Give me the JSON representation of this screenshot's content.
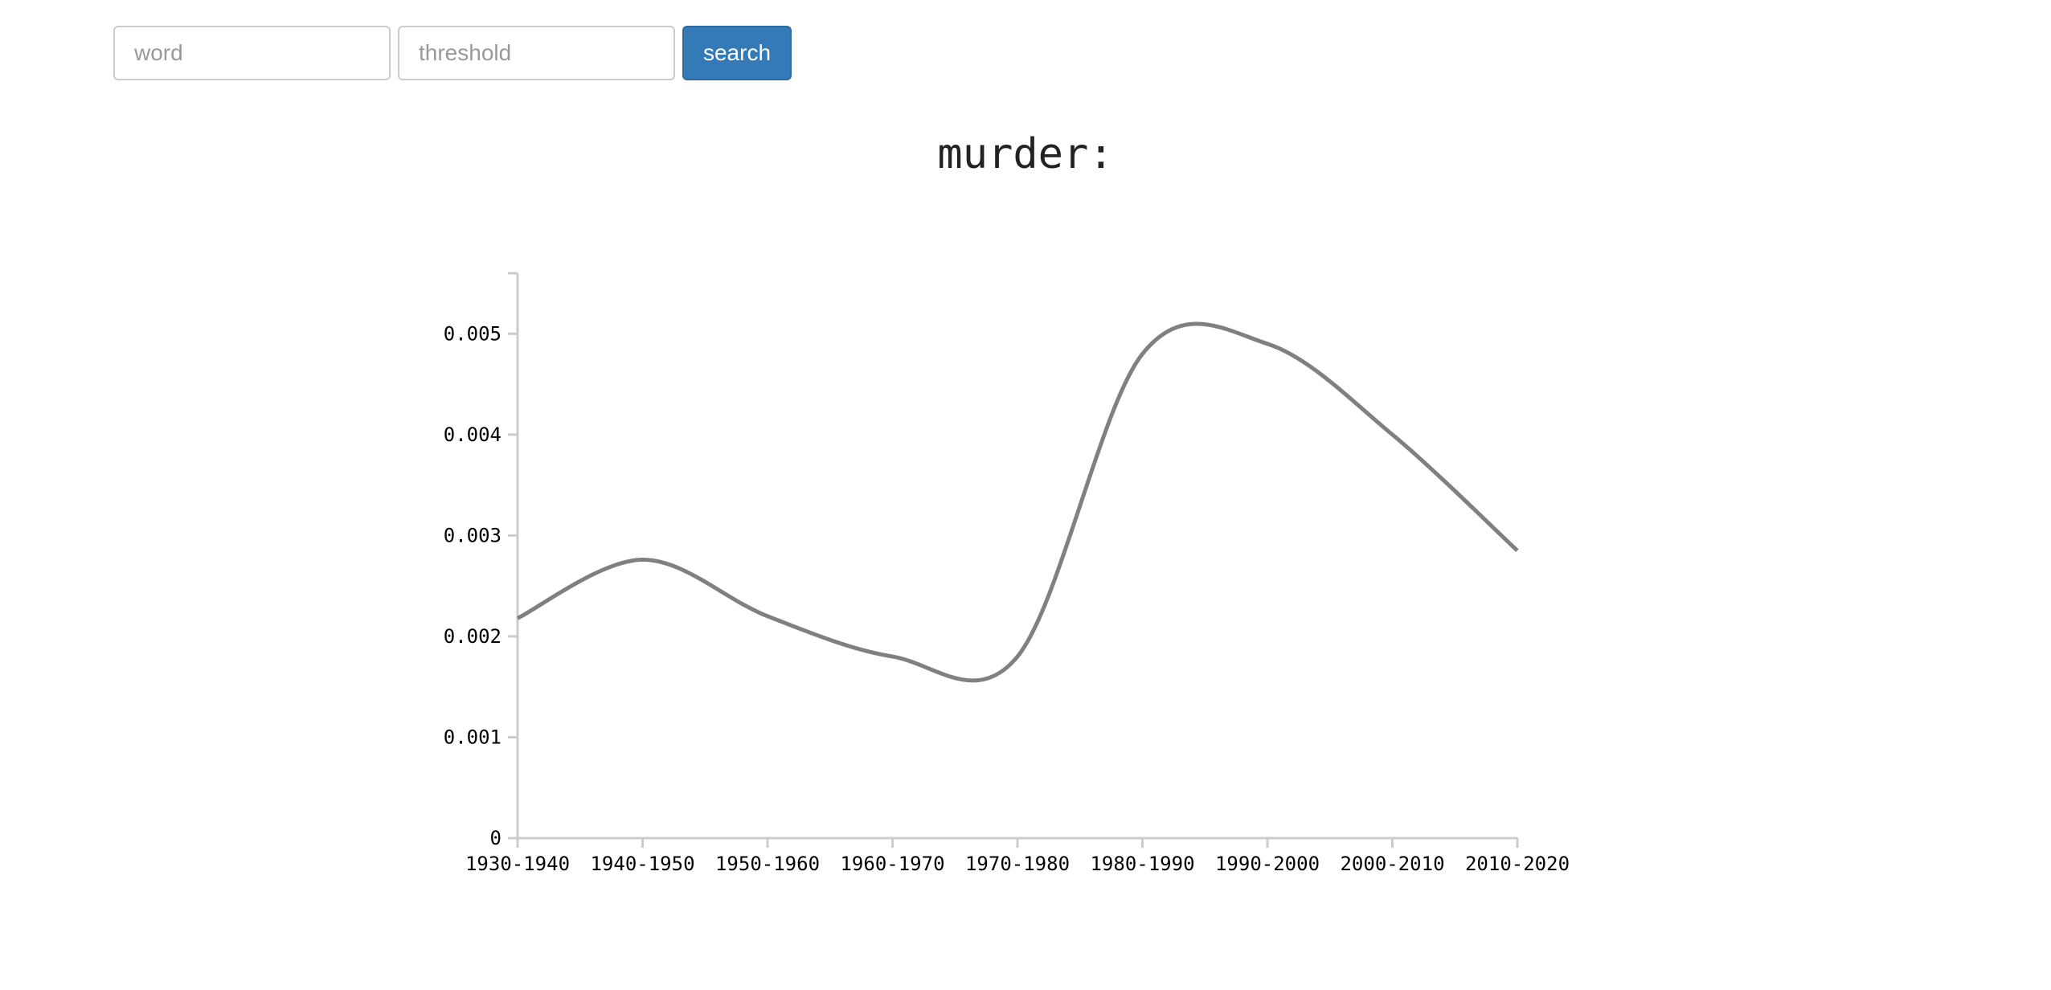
{
  "search_form": {
    "word_placeholder": "word",
    "threshold_placeholder": "threshold",
    "search_label": "search"
  },
  "chart_data": {
    "type": "line",
    "title": "murder:",
    "xlabel": "",
    "ylabel": "",
    "categories": [
      "1930-1940",
      "1940-1950",
      "1950-1960",
      "1960-1970",
      "1970-1980",
      "1980-1990",
      "1990-2000",
      "2000-2010",
      "2010-2020"
    ],
    "values": [
      0.00218,
      0.00276,
      0.0022,
      0.0018,
      0.0018,
      0.0048,
      0.0049,
      0.004,
      0.00285
    ],
    "ylim": [
      0,
      0.0056
    ],
    "yticks": [
      0,
      0.001,
      0.002,
      0.003,
      0.004,
      0.005
    ],
    "ytick_labels": [
      "0",
      "0.001",
      "0.002",
      "0.003",
      "0.004",
      "0.005"
    ],
    "line_color": "#808080",
    "axis_color": "#cccccc",
    "grid": false,
    "legend": "none"
  }
}
